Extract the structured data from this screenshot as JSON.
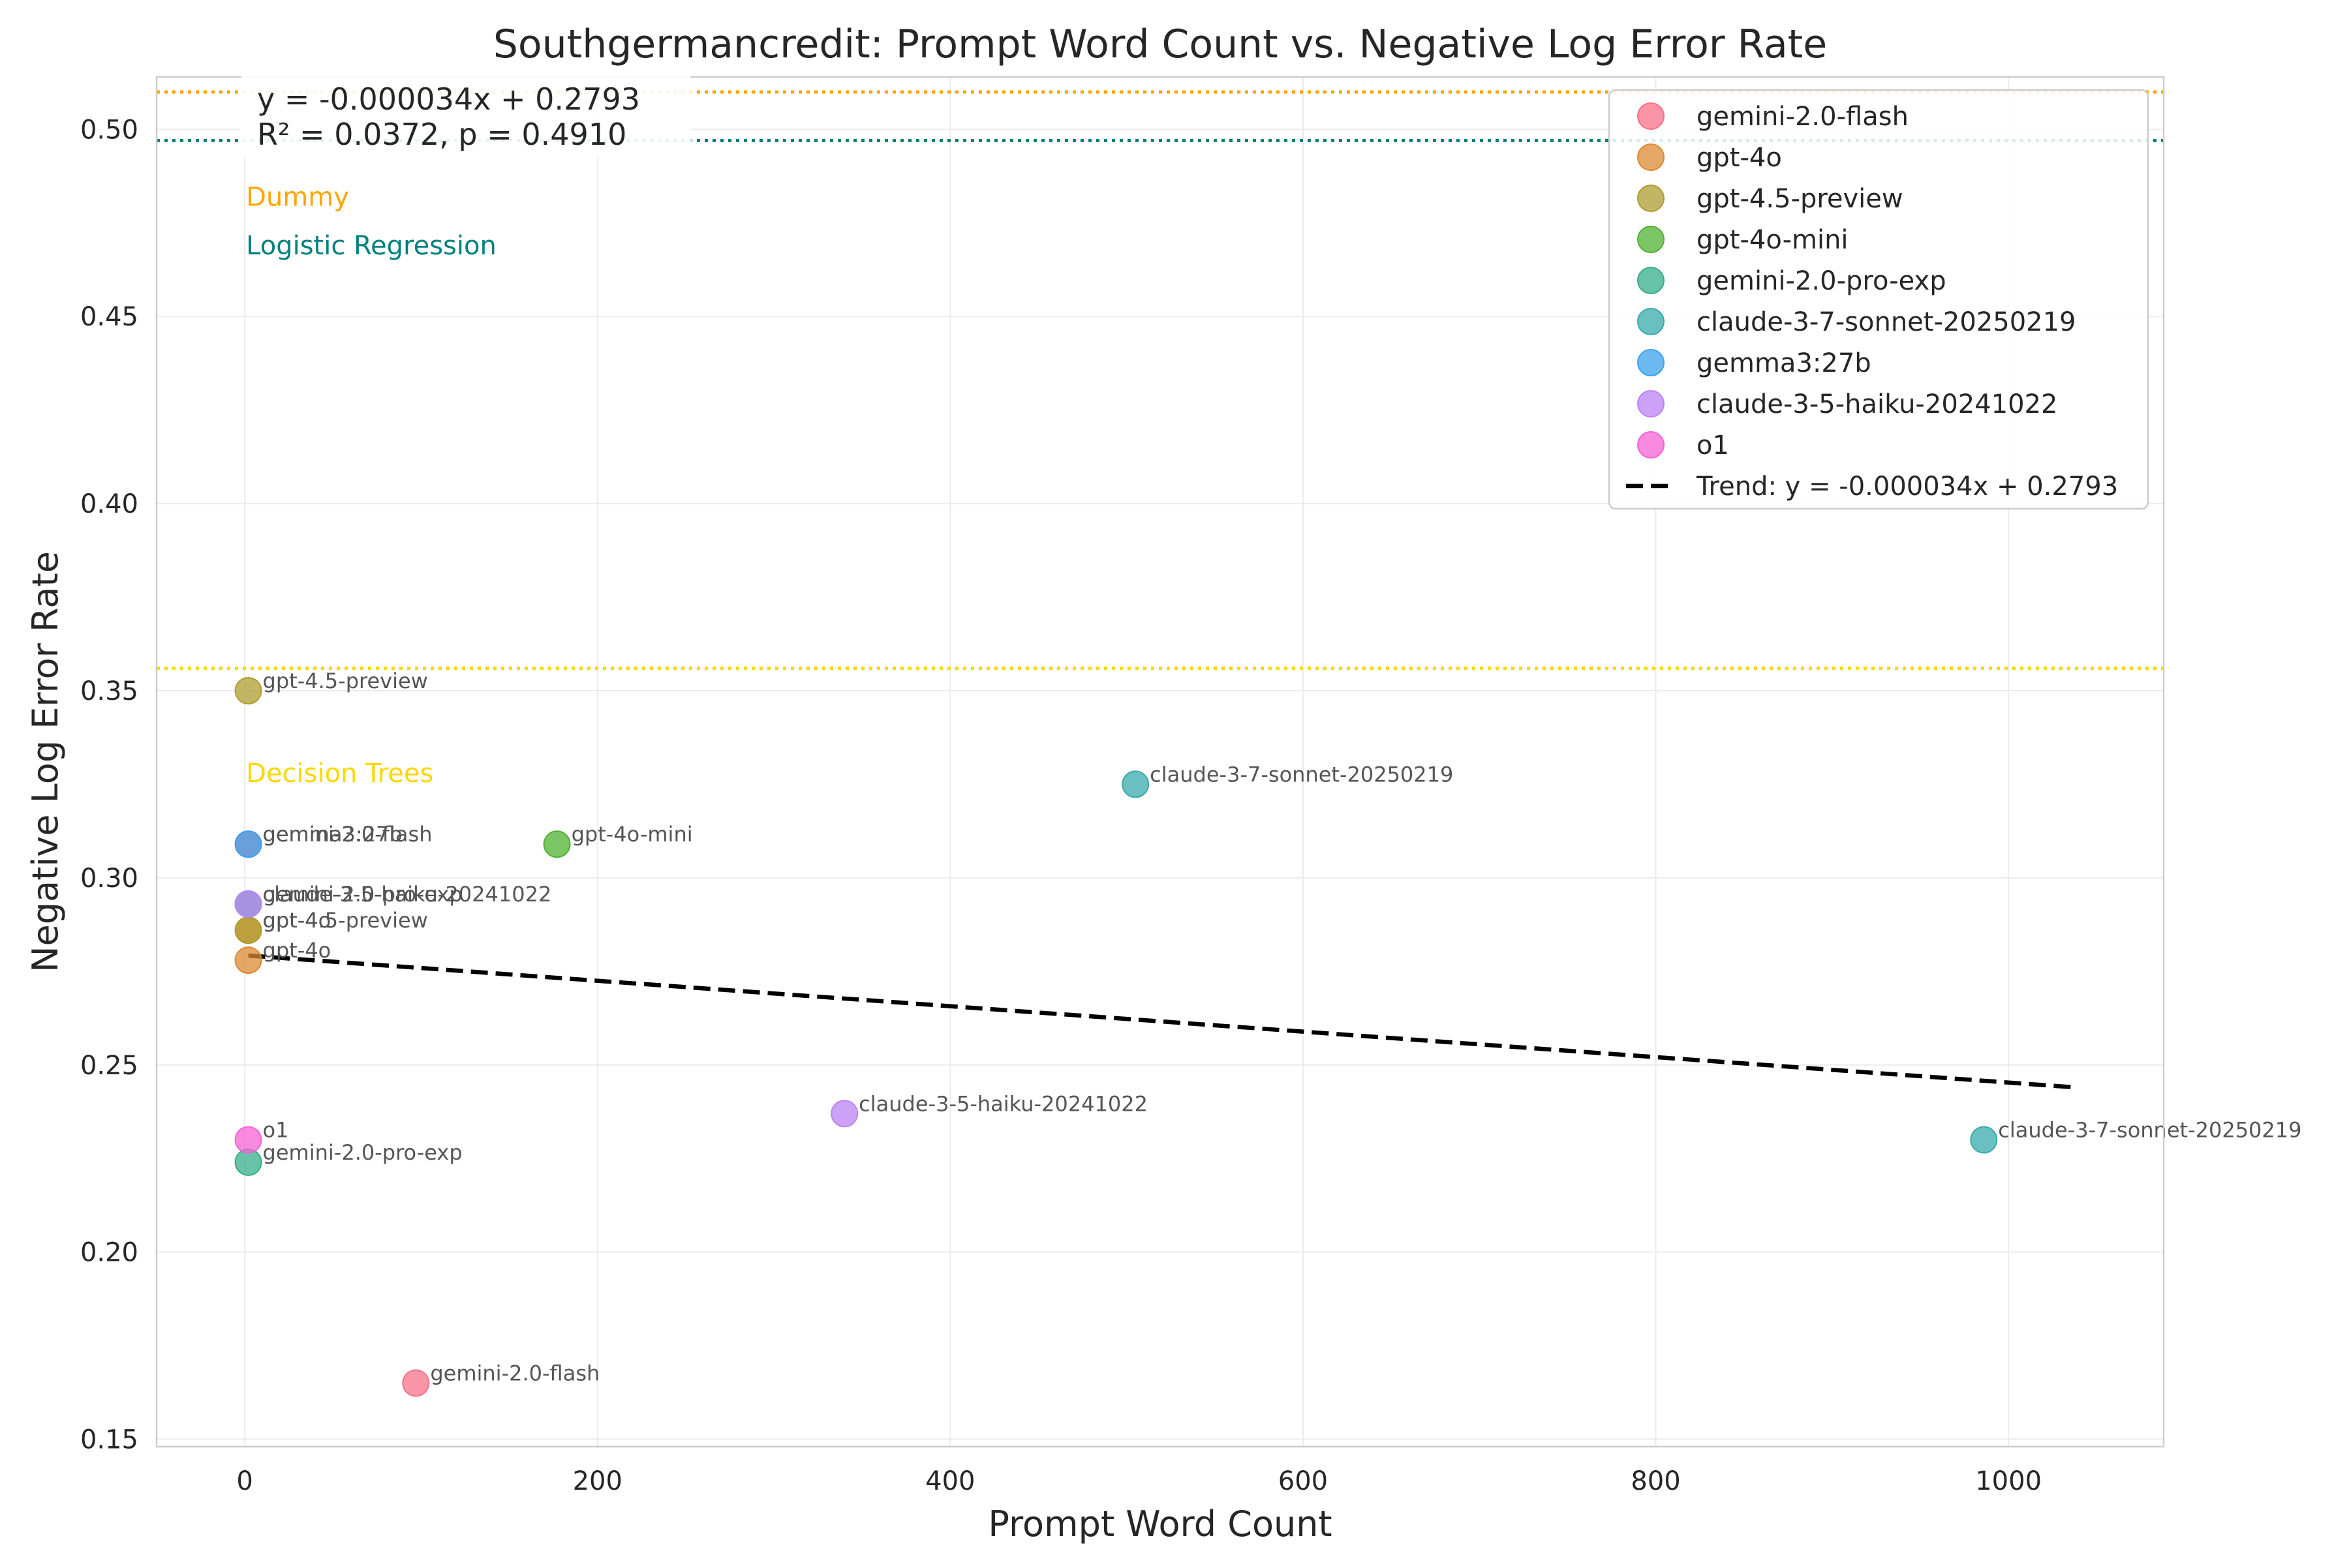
{
  "chart_data": {
    "type": "scatter",
    "title": "Southgermancredit: Prompt Word Count vs. Negative Log Error Rate",
    "xlabel": "Prompt Word Count",
    "ylabel": "Negative Log Error Rate",
    "xlim": [
      -50,
      1088
    ],
    "ylim": [
      0.148,
      0.514
    ],
    "xticks": [
      0,
      200,
      400,
      600,
      800,
      1000
    ],
    "xtick_labels": [
      "0",
      "200",
      "400",
      "600",
      "800",
      "1000"
    ],
    "yticks": [
      0.15,
      0.2,
      0.25,
      0.3,
      0.35,
      0.4,
      0.45,
      0.5
    ],
    "ytick_labels": [
      "0.15",
      "0.20",
      "0.25",
      "0.30",
      "0.35",
      "0.40",
      "0.45",
      "0.50"
    ],
    "grid": true,
    "legend_position": "top-right",
    "series": [
      {
        "name": "gemini-2.0-flash",
        "color": "#f77189",
        "points": [
          {
            "x": 2,
            "y": 0.309,
            "label": "gemini-2.0-flash"
          },
          {
            "x": 97,
            "y": 0.165,
            "label": "gemini-2.0-flash"
          }
        ]
      },
      {
        "name": "gpt-4o",
        "color": "#dc8932",
        "points": [
          {
            "x": 2,
            "y": 0.286,
            "label": "gpt-4o"
          },
          {
            "x": 2,
            "y": 0.278,
            "label": "gpt-4o"
          }
        ]
      },
      {
        "name": "gpt-4.5-preview",
        "color": "#ae9d31",
        "points": [
          {
            "x": 2,
            "y": 0.35,
            "label": "gpt-4.5-preview"
          },
          {
            "x": 2,
            "y": 0.286,
            "label": "gpt-4.5-preview"
          }
        ]
      },
      {
        "name": "gpt-4o-mini",
        "color": "#50b131",
        "points": [
          {
            "x": 177,
            "y": 0.309,
            "label": "gpt-4o-mini"
          }
        ]
      },
      {
        "name": "gemini-2.0-pro-exp",
        "color": "#36ad8a",
        "points": [
          {
            "x": 2,
            "y": 0.293,
            "label": "gemini-2.0-pro-exp"
          },
          {
            "x": 2,
            "y": 0.224,
            "label": "gemini-2.0-pro-exp"
          }
        ]
      },
      {
        "name": "claude-3-7-sonnet-20250219",
        "color": "#38aaac",
        "points": [
          {
            "x": 505,
            "y": 0.325,
            "label": "claude-3-7-sonnet-20250219"
          },
          {
            "x": 986,
            "y": 0.23,
            "label": "claude-3-7-sonnet-20250219"
          }
        ]
      },
      {
        "name": "gemma3:27b",
        "color": "#3ba3ec",
        "points": [
          {
            "x": 2,
            "y": 0.309,
            "label": "gemma3:27b"
          }
        ]
      },
      {
        "name": "claude-3-5-haiku-20241022",
        "color": "#bb83f4",
        "points": [
          {
            "x": 2,
            "y": 0.293,
            "label": "claude-3-5-haiku-20241022"
          },
          {
            "x": 340,
            "y": 0.237,
            "label": "claude-3-5-haiku-20241022"
          }
        ]
      },
      {
        "name": "o1",
        "color": "#f564d4",
        "points": [
          {
            "x": 2,
            "y": 0.23,
            "label": "o1"
          }
        ]
      }
    ],
    "trend": {
      "label": "Trend: y = -0.000034x + 0.2793",
      "slope": -3.4e-05,
      "intercept": 0.2793,
      "x_range": [
        2,
        1036
      ],
      "color": "#000000"
    },
    "stats_box": {
      "line1": "y = -0.000034x + 0.2793",
      "line2": "R² = 0.0372, p = 0.4910"
    },
    "baselines": [
      {
        "name": "Dummy",
        "y": 0.51,
        "color": "#ffa500",
        "label_y": 0.482
      },
      {
        "name": "Logistic Regression",
        "y": 0.497,
        "color": "#008080",
        "label_y": 0.469
      },
      {
        "name": "Decision Trees",
        "y": 0.356,
        "color": "#ffd700",
        "label_y": 0.328
      }
    ]
  }
}
